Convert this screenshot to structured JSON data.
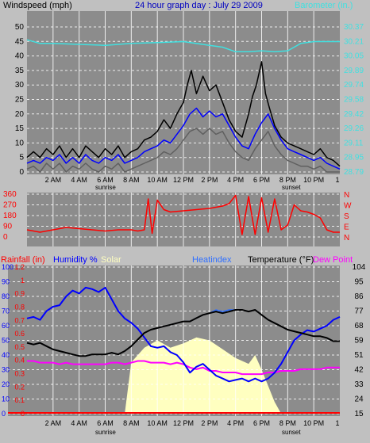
{
  "colors": {
    "background": "#c0c0c0",
    "plot": "#8c8c8c",
    "grid": "#ffffff",
    "title": "#0000c0",
    "barometer": "#40e0e0",
    "gust": "#000000",
    "average_wind": "#0000ff",
    "wind_low": "#606060",
    "direction": "#ff0000",
    "rainfall": "#ff0000",
    "humidity": "#0000ff",
    "solar": "#ffffc0",
    "heatindex": "#2f6fff",
    "temperature": "#000000",
    "dewpoint": "#ff00ff"
  },
  "chart_data": [
    {
      "type": "line",
      "title": "24 hour graph day : July 29 2009",
      "ylabel": "Windspeed (mph)",
      "y2label": "Barometer (in.)",
      "x_tick_labels": [
        "2 AM",
        "4 AM",
        "6 AM",
        "8 AM",
        "10 AM",
        "12 PM",
        "2 PM",
        "4 PM",
        "6 PM",
        "8 PM",
        "10 PM",
        "1"
      ],
      "x_annotations": [
        "sunrise",
        "sunset"
      ],
      "y_ticks": [
        "50",
        "45",
        "40",
        "35",
        "30",
        "25",
        "20",
        "15",
        "10",
        "5",
        "0"
      ],
      "y2_ticks": [
        "30.37",
        "30.21",
        "30.05",
        "29.89",
        "29.74",
        "29.58",
        "29.42",
        "29.26",
        "29.11",
        "28.95",
        "28.79"
      ],
      "xlim": [
        0,
        24
      ],
      "ylim": [
        0,
        50
      ],
      "y2lim": [
        28.79,
        30.37
      ],
      "grid": true,
      "series": [
        {
          "key": "barometer",
          "axis": "right",
          "x": [
            0,
            1,
            2,
            4,
            6,
            8,
            10,
            12,
            14,
            15,
            16,
            17,
            18,
            19,
            20,
            21,
            22,
            23,
            24
          ],
          "values": [
            30.23,
            30.19,
            30.19,
            30.18,
            30.17,
            30.19,
            30.2,
            30.21,
            30.17,
            30.15,
            30.1,
            30.1,
            30.11,
            30.1,
            30.11,
            30.19,
            30.21,
            30.21,
            30.21
          ]
        },
        {
          "key": "gust",
          "axis": "left",
          "x": [
            0,
            0.5,
            1,
            1.5,
            2,
            2.5,
            3,
            3.5,
            4,
            4.5,
            5,
            5.5,
            6,
            6.5,
            7,
            7.5,
            8,
            8.5,
            9,
            9.5,
            10,
            10.5,
            11,
            11.5,
            12,
            12.3,
            12.6,
            13,
            13.5,
            14,
            14.5,
            15,
            15.5,
            16,
            16.5,
            17,
            17.3,
            17.6,
            18,
            18.3,
            18.6,
            19,
            19.5,
            20,
            20.5,
            21,
            21.5,
            22,
            22.5,
            23,
            23.5,
            24
          ],
          "values": [
            5,
            7,
            5,
            8,
            6,
            9,
            5,
            8,
            5,
            9,
            7,
            5,
            8,
            6,
            9,
            5,
            7,
            8,
            11,
            12,
            14,
            18,
            15,
            20,
            24,
            30,
            35,
            27,
            33,
            28,
            30,
            24,
            18,
            14,
            12,
            20,
            26,
            30,
            38,
            27,
            22,
            16,
            12,
            10,
            9,
            8,
            7,
            6,
            8,
            5,
            4,
            2
          ]
        },
        {
          "key": "average_wind",
          "axis": "left",
          "x": [
            0,
            0.5,
            1,
            1.5,
            2,
            2.5,
            3,
            3.5,
            4,
            4.5,
            5,
            5.5,
            6,
            6.5,
            7,
            7.5,
            8,
            8.5,
            9,
            9.5,
            10,
            10.5,
            11,
            11.5,
            12,
            12.5,
            13,
            13.5,
            14,
            14.5,
            15,
            15.5,
            16,
            16.5,
            17,
            17.5,
            18,
            18.5,
            19,
            19.5,
            20,
            20.5,
            21,
            21.5,
            22,
            22.5,
            23,
            23.5,
            24
          ],
          "values": [
            3,
            4,
            3,
            5,
            4,
            6,
            3,
            5,
            3,
            6,
            4,
            3,
            5,
            4,
            6,
            3,
            4,
            5,
            7,
            8,
            9,
            11,
            10,
            13,
            16,
            20,
            22,
            19,
            21,
            19,
            20,
            16,
            12,
            9,
            8,
            13,
            17,
            20,
            15,
            11,
            8,
            7,
            6,
            5,
            4,
            5,
            3,
            2,
            1
          ]
        },
        {
          "key": "wind_low",
          "axis": "left",
          "x": [
            0,
            0.5,
            1,
            1.5,
            2,
            2.5,
            3,
            3.5,
            4,
            4.5,
            5,
            5.5,
            6,
            6.5,
            7,
            7.5,
            8,
            8.5,
            9,
            9.5,
            10,
            10.5,
            11,
            11.5,
            12,
            12.5,
            13,
            13.5,
            14,
            14.5,
            15,
            15.5,
            16,
            16.5,
            17,
            17.5,
            18,
            18.5,
            19,
            19.5,
            20,
            20.5,
            21,
            21.5,
            22,
            22.5,
            23,
            23.5,
            24
          ],
          "values": [
            1,
            2,
            0,
            3,
            1,
            3,
            0,
            2,
            1,
            3,
            1,
            0,
            2,
            1,
            3,
            0,
            1,
            2,
            3,
            4,
            5,
            7,
            6,
            8,
            11,
            14,
            15,
            13,
            15,
            13,
            14,
            10,
            7,
            5,
            4,
            8,
            11,
            14,
            9,
            6,
            4,
            3,
            2,
            2,
            1,
            2,
            0,
            0,
            0
          ]
        }
      ]
    },
    {
      "type": "line",
      "y_ticks": [
        "360",
        "270",
        "180",
        "90",
        "0"
      ],
      "compass_labels": [
        "N",
        "W",
        "S",
        "E",
        "N"
      ],
      "ylim": [
        0,
        360
      ],
      "grid": true,
      "series": [
        {
          "key": "direction",
          "x": [
            0,
            1,
            2,
            3,
            4,
            5,
            6,
            7,
            8,
            8.5,
            9,
            9.3,
            9.6,
            10,
            10.5,
            11,
            12,
            13,
            14,
            15,
            15.5,
            16,
            16.5,
            17,
            17.5,
            18,
            18.5,
            19,
            19.5,
            20,
            20.5,
            21,
            21.5,
            22,
            22.5,
            23,
            23.5,
            24
          ],
          "values": [
            60,
            40,
            60,
            80,
            70,
            60,
            50,
            60,
            60,
            50,
            60,
            320,
            30,
            310,
            230,
            210,
            220,
            230,
            240,
            260,
            280,
            350,
            20,
            340,
            20,
            330,
            40,
            320,
            60,
            100,
            270,
            220,
            210,
            190,
            160,
            60,
            40,
            40
          ]
        }
      ]
    },
    {
      "type": "line",
      "ylabel_items": [
        "Rainfall (in)",
        "Humidity %",
        "Solar",
        "Heatindex",
        "Temperature (°F)",
        "Dew Point"
      ],
      "y_ticks_humidity": [
        "100",
        "90",
        "80",
        "70",
        "60",
        "50",
        "40",
        "30",
        "20",
        "10",
        "0"
      ],
      "y_ticks_rain": [
        "1.2",
        "1",
        "0.9",
        "0.8",
        "0.7",
        "0.6",
        "0.5",
        "0.4",
        "0.3",
        "0.2",
        "0.1",
        "0"
      ],
      "y_ticks_temp": [
        "104",
        "95",
        "86",
        "77",
        "68",
        "59",
        "51",
        "42",
        "33",
        "24",
        "15"
      ],
      "humidity_ylim": [
        0,
        100
      ],
      "temperature_ylim": [
        15,
        104
      ],
      "grid": true,
      "series": [
        {
          "key": "solar",
          "x": [
            0,
            7.5,
            8,
            9,
            10,
            11,
            12,
            13,
            14,
            15,
            16,
            17,
            17.5,
            18,
            19,
            19.5,
            24
          ],
          "values": [
            0,
            0,
            35,
            45,
            50,
            45,
            48,
            52,
            50,
            44,
            38,
            34,
            40,
            30,
            8,
            0,
            0
          ]
        },
        {
          "key": "humidity",
          "x": [
            0,
            0.5,
            1,
            1.5,
            2,
            2.5,
            3,
            3.5,
            4,
            4.5,
            5,
            5.5,
            6,
            6.5,
            7,
            7.5,
            8,
            8.5,
            9,
            9.5,
            10,
            10.5,
            11,
            11.5,
            12,
            12.5,
            13,
            13.5,
            14,
            14.5,
            15,
            15.5,
            16,
            16.5,
            17,
            17.5,
            18,
            18.5,
            19,
            19.5,
            20,
            20.5,
            21,
            21.5,
            22,
            22.5,
            23,
            23.5,
            24
          ],
          "values": [
            65,
            66,
            64,
            70,
            73,
            74,
            80,
            84,
            82,
            86,
            85,
            83,
            86,
            78,
            70,
            65,
            62,
            58,
            52,
            46,
            45,
            46,
            42,
            40,
            35,
            28,
            32,
            34,
            30,
            26,
            24,
            22,
            23,
            24,
            22,
            24,
            22,
            24,
            28,
            34,
            42,
            50,
            54,
            57,
            56,
            58,
            60,
            64,
            66
          ]
        },
        {
          "key": "temperature",
          "x": [
            0,
            0.5,
            1,
            1.5,
            2,
            2.5,
            3,
            3.5,
            4,
            4.5,
            5,
            5.5,
            6,
            6.5,
            7,
            7.5,
            8,
            8.5,
            9,
            9.5,
            10,
            10.5,
            11,
            11.5,
            12,
            12.5,
            13,
            13.5,
            14,
            14.5,
            15,
            15.5,
            16,
            16.5,
            17,
            17.5,
            18,
            18.5,
            19,
            19.5,
            20,
            20.5,
            21,
            21.5,
            22,
            22.5,
            23,
            23.5,
            24
          ],
          "values": [
            58,
            57,
            58,
            56,
            54,
            53,
            52,
            51,
            50,
            50,
            51,
            51,
            51,
            52,
            51,
            53,
            56,
            60,
            64,
            66,
            67,
            68,
            69,
            70,
            71,
            71,
            73,
            75,
            76,
            77,
            76,
            77,
            78,
            78,
            77,
            78,
            75,
            72,
            70,
            68,
            66,
            65,
            64,
            63,
            62,
            62,
            61,
            59,
            59
          ]
        },
        {
          "key": "heatindex",
          "x": [
            0,
            0.5,
            1,
            1.5,
            2,
            2.5,
            3,
            3.5,
            4,
            4.5,
            5,
            5.5,
            6,
            6.5,
            7,
            7.5,
            8,
            8.5,
            9,
            9.5,
            10,
            10.5,
            11,
            11.5,
            12,
            12.5,
            13,
            13.5,
            14,
            14.5,
            15,
            15.5,
            16,
            16.5,
            17,
            17.5,
            18,
            18.5,
            19,
            19.5,
            20,
            20.5,
            21,
            21.5,
            22,
            22.5,
            23,
            23.5,
            24
          ],
          "values": [
            58,
            57,
            58,
            56,
            54,
            53,
            52,
            51,
            50,
            50,
            51,
            51,
            51,
            52,
            51,
            53,
            56,
            60,
            64,
            66,
            67,
            68,
            69,
            70,
            71,
            71,
            73,
            75,
            76,
            78,
            77,
            78,
            78,
            78,
            77,
            78,
            75,
            72,
            70,
            68,
            66,
            65,
            64,
            63,
            62,
            62,
            61,
            59,
            59
          ]
        },
        {
          "key": "dewpoint",
          "x": [
            0,
            0.5,
            1,
            1.5,
            2,
            2.5,
            3,
            3.5,
            4,
            4.5,
            5,
            5.5,
            6,
            6.5,
            7,
            7.5,
            8,
            8.5,
            9,
            9.5,
            10,
            10.5,
            11,
            11.5,
            12,
            12.5,
            13,
            13.5,
            14,
            14.5,
            15,
            15.5,
            16,
            16.5,
            17,
            17.5,
            18,
            18.5,
            19,
            19.5,
            20,
            20.5,
            21,
            21.5,
            22,
            22.5,
            23,
            23.5,
            24
          ],
          "values": [
            47,
            47,
            46,
            46,
            46,
            45,
            46,
            45,
            45,
            45,
            45,
            45,
            45,
            46,
            46,
            45,
            46,
            47,
            47,
            46,
            46,
            46,
            45,
            46,
            45,
            43,
            42,
            43,
            41,
            41,
            40,
            40,
            40,
            39,
            39,
            39,
            39,
            40,
            40,
            41,
            41,
            41,
            42,
            42,
            42,
            42,
            43,
            43,
            43
          ]
        },
        {
          "key": "rainfall",
          "x": [
            0,
            24
          ],
          "values": [
            0,
            0
          ]
        }
      ]
    }
  ]
}
